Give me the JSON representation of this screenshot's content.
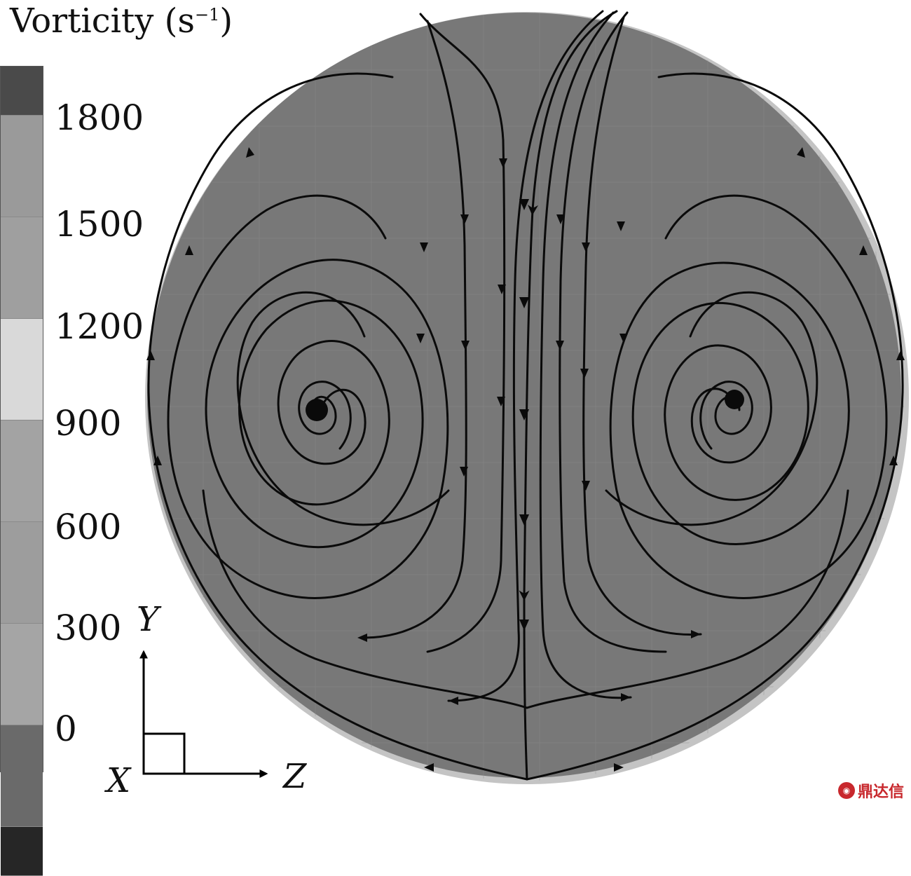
{
  "title": {
    "text": "Vorticity (s",
    "superscript": "−1",
    "suffix": ")"
  },
  "legend": {
    "ticks": [
      "1800",
      "1500",
      "1200",
      "900",
      "600",
      "300",
      "0"
    ],
    "bands": [
      "#4a4a4a",
      "#9a9a9a",
      "#9f9f9f",
      "#d9d9d9",
      "#a3a3a3",
      "#9d9d9d",
      "#a5a5a5",
      "#6a6a6a",
      "#262626"
    ]
  },
  "axes": {
    "y": "Y",
    "z": "Z",
    "x": "X"
  },
  "colors": {
    "domain_fill": "#787878",
    "domain_rim": "#c4c4c4",
    "streamline": "#0a0a0a"
  },
  "watermark": {
    "text": "鼎达信",
    "logo": "logo-icon"
  }
}
